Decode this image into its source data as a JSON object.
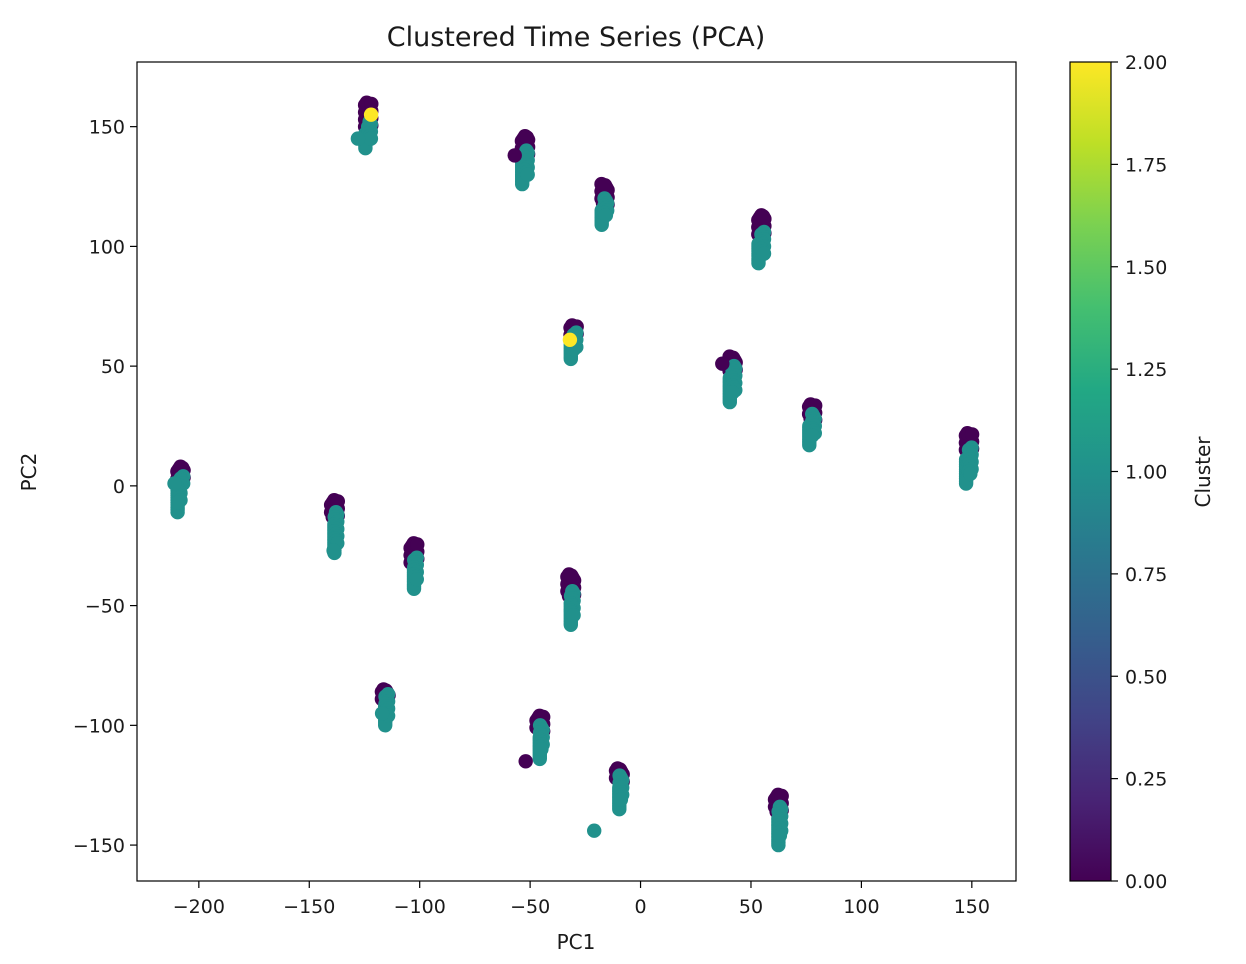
{
  "chart_data": {
    "type": "scatter",
    "title": "Clustered Time Series (PCA)",
    "xlabel": "PC1",
    "ylabel": "PC2",
    "xlim": [
      -228,
      170
    ],
    "ylim": [
      -165,
      177
    ],
    "xticks": [
      -200,
      -150,
      -100,
      -50,
      0,
      50,
      100,
      150
    ],
    "yticks": [
      -150,
      -100,
      -50,
      0,
      50,
      100,
      150
    ],
    "xtick_labels": [
      "−200",
      "−150",
      "−100",
      "−50",
      "0",
      "50",
      "100",
      "150"
    ],
    "ytick_labels": [
      "−150",
      "−100",
      "−50",
      "0",
      "50",
      "100",
      "150"
    ],
    "grid": false,
    "colorbar": {
      "label": "Cluster",
      "min": 0,
      "max": 2,
      "ticks": [
        0,
        0.25,
        0.5,
        0.75,
        1.0,
        1.25,
        1.5,
        1.75,
        2.0
      ],
      "tick_labels": [
        "0.00",
        "0.25",
        "0.50",
        "0.75",
        "1.00",
        "1.25",
        "1.50",
        "1.75",
        "2.00"
      ],
      "colormap": "viridis"
    },
    "colors": {
      "cluster_0": "#440154",
      "cluster_1": "#21918c",
      "cluster_2": "#fde725"
    },
    "groups": [
      {
        "x": -124,
        "y_top": 160,
        "y_bottom": 141,
        "split": 150
      },
      {
        "x": -53,
        "y_top": 146,
        "y_bottom": 126,
        "split": 138
      },
      {
        "x": -17,
        "y_top": 126,
        "y_bottom": 109,
        "split": 118
      },
      {
        "x": 54,
        "y_top": 113,
        "y_bottom": 93,
        "split": 104
      },
      {
        "x": -31,
        "y_top": 67,
        "y_bottom": 53,
        "split": 62
      },
      {
        "x": 41,
        "y_top": 54,
        "y_bottom": 35,
        "split": 48
      },
      {
        "x": 77,
        "y_top": 34,
        "y_bottom": 17,
        "split": 28
      },
      {
        "x": 148,
        "y_top": 22,
        "y_bottom": 1,
        "split": 14
      },
      {
        "x": -209,
        "y_top": 8,
        "y_bottom": -11,
        "split": 2
      },
      {
        "x": -138,
        "y_top": -6,
        "y_bottom": -28,
        "split": -13
      },
      {
        "x": -102,
        "y_top": -24,
        "y_bottom": -43,
        "split": -32
      },
      {
        "x": -31,
        "y_top": -37,
        "y_bottom": -58,
        "split": -46
      },
      {
        "x": -115,
        "y_top": -85,
        "y_bottom": -100,
        "split": -89
      },
      {
        "x": -45,
        "y_top": -96,
        "y_bottom": -114,
        "split": -102
      },
      {
        "x": -9,
        "y_top": -118,
        "y_bottom": -135,
        "split": -123
      },
      {
        "x": 63,
        "y_top": -129,
        "y_bottom": -150,
        "split": -136
      }
    ],
    "points": [
      {
        "x": -122,
        "y": 155,
        "cluster": 2
      },
      {
        "x": -32,
        "y": 61,
        "cluster": 2
      },
      {
        "x": -57,
        "y": 138,
        "cluster": 0
      },
      {
        "x": 37,
        "y": 51,
        "cluster": 0
      },
      {
        "x": -52,
        "y": -115,
        "cluster": 0
      },
      {
        "x": -211,
        "y": 1,
        "cluster": 1
      },
      {
        "x": -128,
        "y": 145,
        "cluster": 1
      },
      {
        "x": -117,
        "y": -95,
        "cluster": 1
      },
      {
        "x": -139,
        "y": -27,
        "cluster": 1
      },
      {
        "x": -21,
        "y": -144,
        "cluster": 1
      }
    ]
  }
}
